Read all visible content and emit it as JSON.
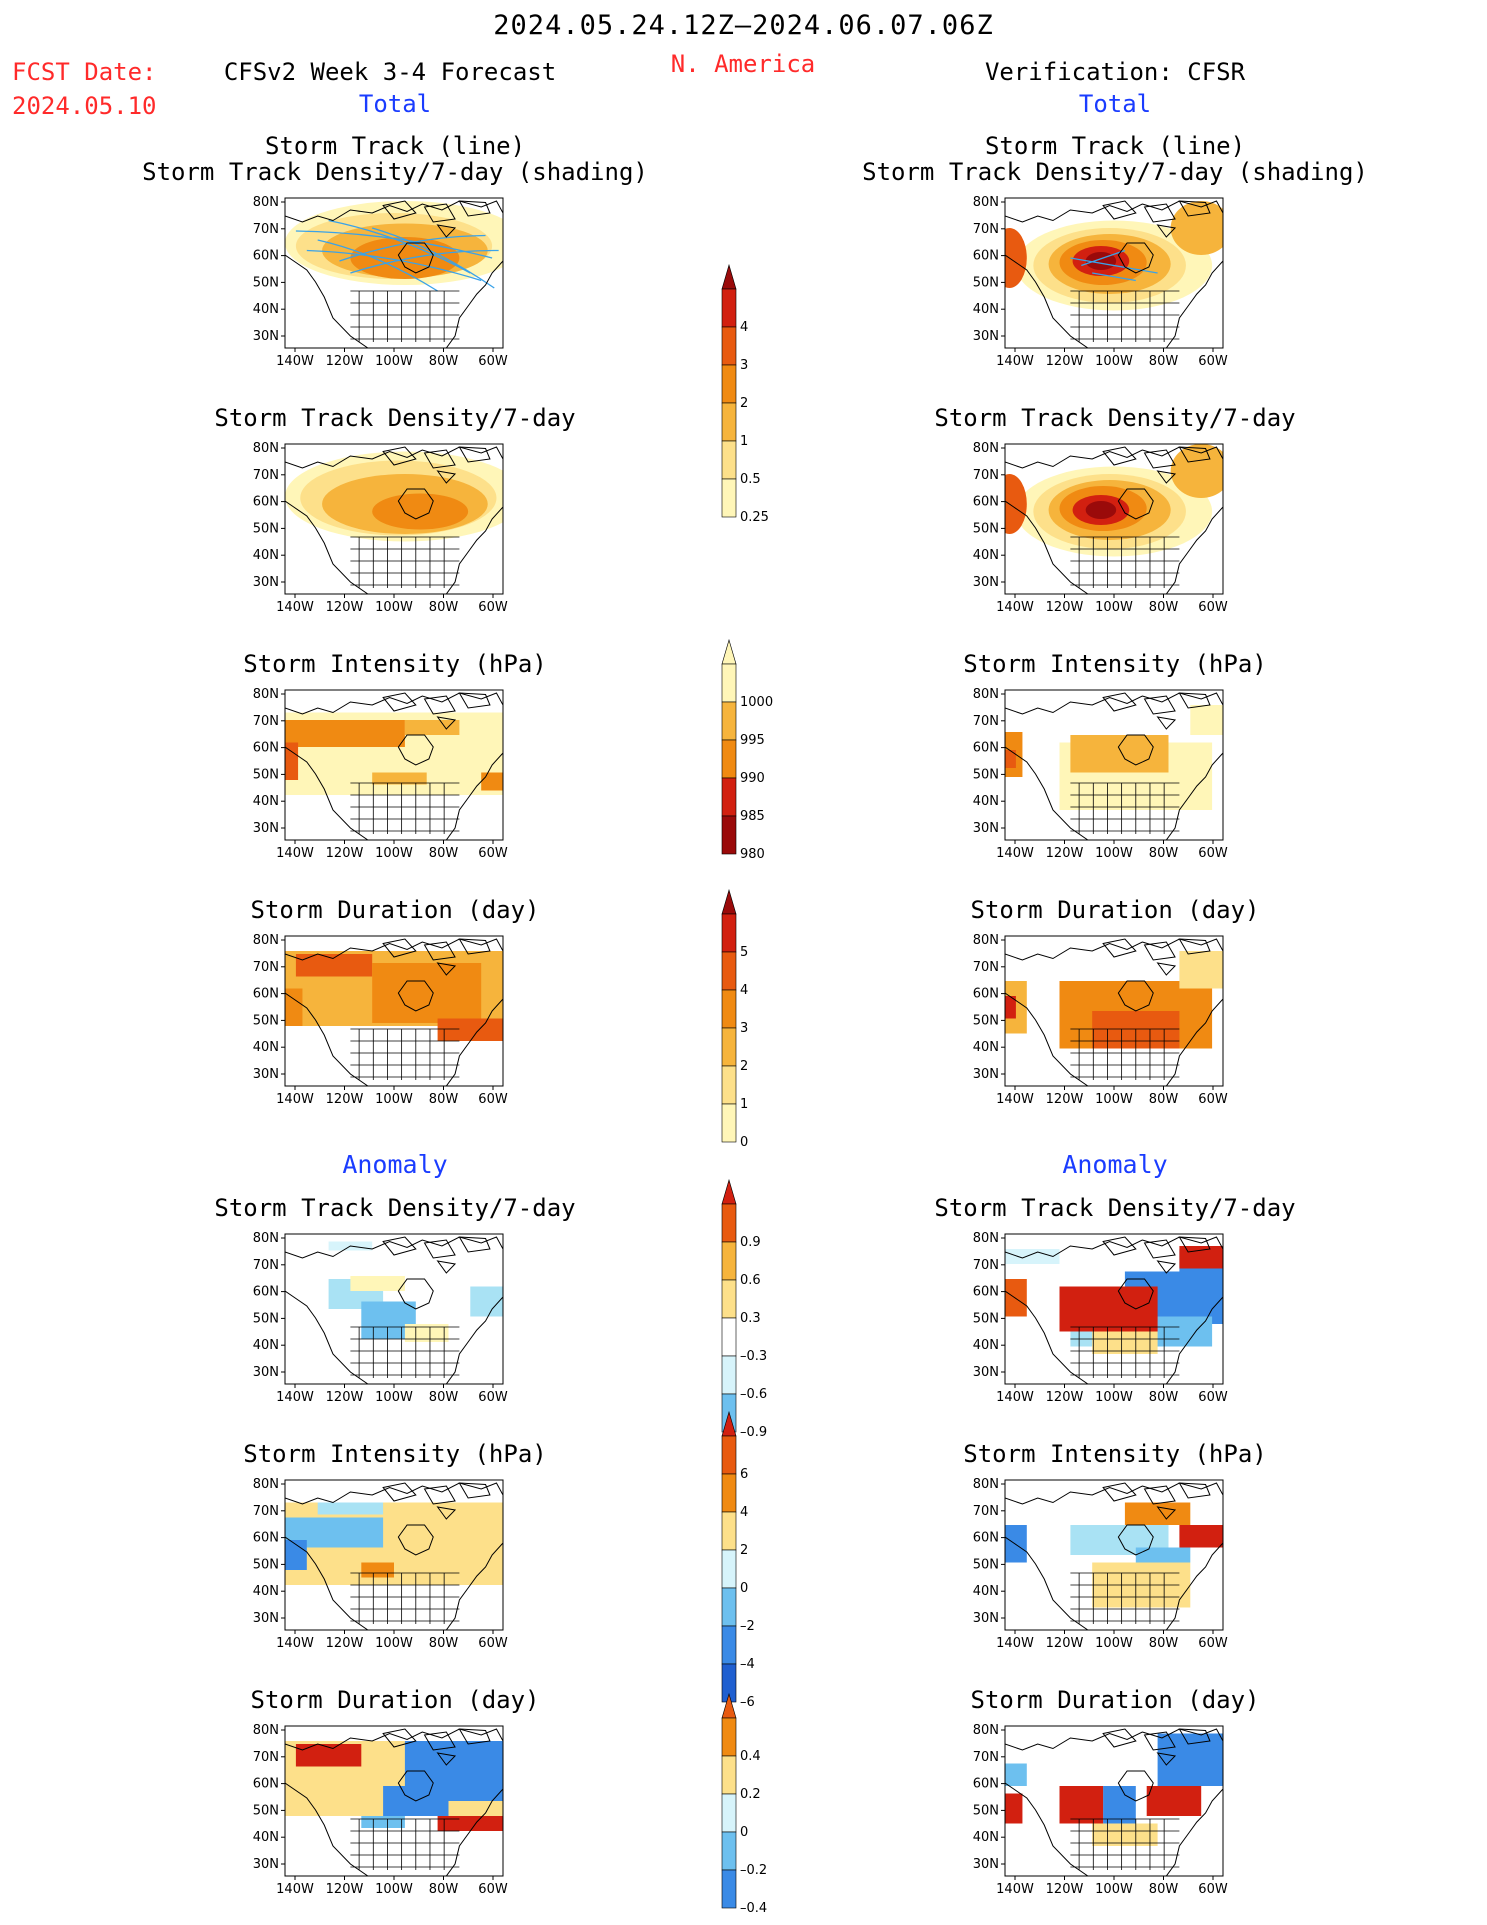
{
  "header": {
    "period": "2024.05.24.12Z–2024.06.07.06Z",
    "fcst_label": "FCST Date:",
    "fcst_date": "2024.05.10",
    "left_title": "CFSv2 Week 3-4 Forecast",
    "region": "N. America",
    "right_title": "Verification: CFSR",
    "total_left": "Total",
    "total_right": "Total",
    "anomaly_left": "Anomaly",
    "anomaly_right": "Anomaly"
  },
  "panels": {
    "track_line": "Storm Track (line)",
    "track_density_shading": "Storm Track Density/7-day (shading)",
    "track_density": "Storm Track Density/7-day",
    "intensity": "Storm Intensity (hPa)",
    "duration": "Storm Duration (day)"
  },
  "colors": {
    "warm": [
      "#fff6b8",
      "#fde08a",
      "#f6b43c",
      "#f08a12",
      "#e85a10",
      "#d22010",
      "#9a0a0a"
    ],
    "cool": [
      "#d7f4fb",
      "#a9e2f4",
      "#6dc0ef",
      "#3a8ae6",
      "#1f5fd0"
    ]
  },
  "chart_data": [
    {
      "type": "heatmap",
      "panel": "forecast-total-track-density-shading",
      "title": "Storm Track (line) / Storm Track Density/7-day (shading)",
      "x_ticks": [
        "140W",
        "120W",
        "100W",
        "80W",
        "60W"
      ],
      "y_ticks": [
        "30N",
        "40N",
        "50N",
        "60N",
        "70N",
        "80N"
      ],
      "colorbar": {
        "levels": [
          0.25,
          0.5,
          1,
          2,
          3,
          4
        ]
      },
      "overlay": "storm track lines"
    },
    {
      "type": "heatmap",
      "panel": "cfsr-total-track-density-shading",
      "title": "Storm Track (line) / Storm Track Density/7-day (shading)",
      "x_ticks": [
        "140W",
        "120W",
        "100W",
        "80W",
        "60W"
      ],
      "y_ticks": [
        "30N",
        "40N",
        "50N",
        "60N",
        "70N",
        "80N"
      ],
      "colorbar": {
        "levels": [
          0.25,
          0.5,
          1,
          2,
          3,
          4
        ]
      },
      "overlay": "storm track lines"
    },
    {
      "type": "heatmap",
      "panel": "forecast-total-track-density",
      "title": "Storm Track Density/7-day",
      "colorbar": {
        "levels": [
          0.25,
          0.5,
          1,
          2,
          3,
          4
        ]
      }
    },
    {
      "type": "heatmap",
      "panel": "cfsr-total-track-density",
      "title": "Storm Track Density/7-day",
      "colorbar": {
        "levels": [
          0.25,
          0.5,
          1,
          2,
          3,
          4
        ]
      }
    },
    {
      "type": "heatmap",
      "panel": "forecast-total-intensity",
      "title": "Storm Intensity (hPa)",
      "colorbar": {
        "levels": [
          1000,
          995,
          990,
          985,
          980
        ]
      }
    },
    {
      "type": "heatmap",
      "panel": "cfsr-total-intensity",
      "title": "Storm Intensity (hPa)",
      "colorbar": {
        "levels": [
          1000,
          995,
          990,
          985,
          980
        ]
      }
    },
    {
      "type": "heatmap",
      "panel": "forecast-total-duration",
      "title": "Storm Duration (day)",
      "colorbar": {
        "levels": [
          0,
          1,
          2,
          3,
          4,
          5
        ]
      }
    },
    {
      "type": "heatmap",
      "panel": "cfsr-total-duration",
      "title": "Storm Duration (day)",
      "colorbar": {
        "levels": [
          0,
          1,
          2,
          3,
          4,
          5
        ]
      }
    },
    {
      "type": "heatmap",
      "panel": "forecast-anomaly-track-density",
      "title": "Storm Track Density/7-day",
      "colorbar": {
        "levels": [
          0.9,
          0.6,
          0.3,
          -0.3,
          -0.6,
          -0.9
        ]
      }
    },
    {
      "type": "heatmap",
      "panel": "cfsr-anomaly-track-density",
      "title": "Storm Track Density/7-day",
      "colorbar": {
        "levels": [
          0.9,
          0.6,
          0.3,
          -0.3,
          -0.6,
          -0.9
        ]
      }
    },
    {
      "type": "heatmap",
      "panel": "forecast-anomaly-intensity",
      "title": "Storm Intensity (hPa)",
      "colorbar": {
        "levels": [
          6,
          4,
          2,
          0,
          -2,
          -4,
          -6
        ]
      }
    },
    {
      "type": "heatmap",
      "panel": "cfsr-anomaly-intensity",
      "title": "Storm Intensity (hPa)",
      "colorbar": {
        "levels": [
          6,
          4,
          2,
          0,
          -2,
          -4,
          -6
        ]
      }
    },
    {
      "type": "heatmap",
      "panel": "forecast-anomaly-duration",
      "title": "Storm Duration (day)",
      "colorbar": {
        "levels": [
          0.4,
          0.2,
          0,
          -0.2,
          -0.4
        ]
      }
    },
    {
      "type": "heatmap",
      "panel": "cfsr-anomaly-duration",
      "title": "Storm Duration (day)",
      "colorbar": {
        "levels": [
          0.4,
          0.2,
          0,
          -0.2,
          -0.4
        ]
      }
    }
  ],
  "axes": {
    "x_ticks": [
      "140W",
      "120W",
      "100W",
      "80W",
      "60W"
    ],
    "y_ticks": [
      "30N",
      "40N",
      "50N",
      "60N",
      "70N",
      "80N"
    ]
  },
  "colorbars": [
    {
      "labels": [
        "4",
        "3",
        "2",
        "1",
        "0.5",
        "0.25"
      ]
    },
    {
      "labels": [
        "1000",
        "995",
        "990",
        "985",
        "980"
      ]
    },
    {
      "labels": [
        "5",
        "4",
        "3",
        "2",
        "1",
        "0"
      ]
    },
    {
      "labels": [
        "0.9",
        "0.6",
        "0.3",
        "–0.3",
        "–0.6",
        "–0.9"
      ]
    },
    {
      "labels": [
        "6",
        "4",
        "2",
        "0",
        "–2",
        "–4",
        "–6"
      ]
    },
    {
      "labels": [
        "0.4",
        "0.2",
        "0",
        "–0.2",
        "–0.4"
      ]
    }
  ]
}
